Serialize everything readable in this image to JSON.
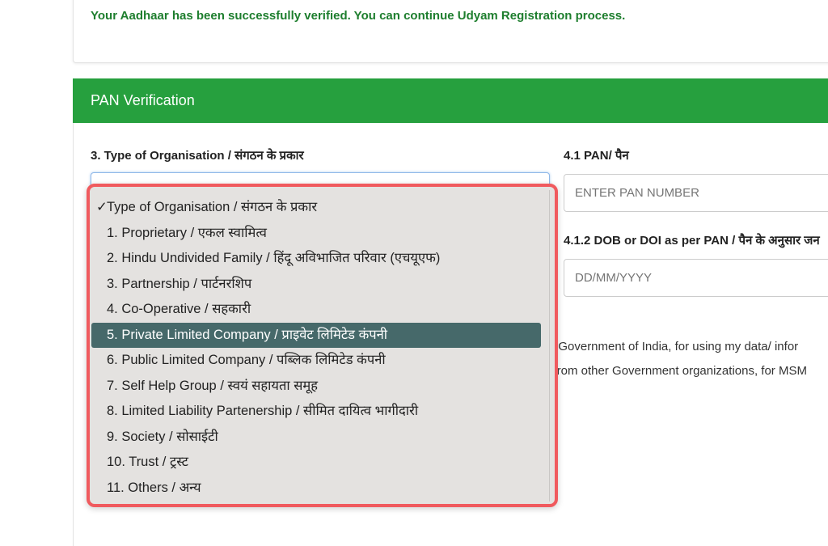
{
  "success_message": "Your Aadhaar has been successfully verified. You can continue Udyam Registration process.",
  "section_title": "PAN Verification",
  "org_type": {
    "label": "3. Type of Organisation / संगठन के प्रकार",
    "selected": "Type of Organisation / संगठन के प्रकार",
    "highlighted_index": 5,
    "options": [
      "Type of Organisation / संगठन के प्रकार",
      "1. Proprietary / एकल स्वामित्व",
      "2. Hindu Undivided Family / हिंदू अविभाजित परिवार (एचयूएफ)",
      "3. Partnership / पार्टनरशिप",
      "4. Co-Operative / सहकारी",
      "5. Private Limited Company / प्राइवेट लिमिटेड कंपनी",
      "6. Public Limited Company / पब्लिक लिमिटेड कंपनी",
      "7. Self Help Group / स्वयं सहायता समूह",
      "8. Limited Liability Partenership / सीमित दायित्व भागीदारी",
      "9. Society / सोसाईटी",
      "10. Trust / ट्रस्ट",
      "11. Others / अन्य"
    ]
  },
  "pan": {
    "label": "4.1 PAN/ पैन",
    "placeholder": "ENTER PAN NUMBER"
  },
  "dob": {
    "label": "4.1.2 DOB or DOI as per PAN / पैन के अनुसार जन",
    "placeholder": "DD/MM/YYYY"
  },
  "consent": {
    "line1": "E, Government of India, for using my data/ infor",
    "line2": "o from other Government organizations, for MSM"
  },
  "colors": {
    "header": "#26a03e",
    "success_text": "#1e7e2e",
    "highlight": "#46696a",
    "annotation_border": "#f05a5e"
  }
}
